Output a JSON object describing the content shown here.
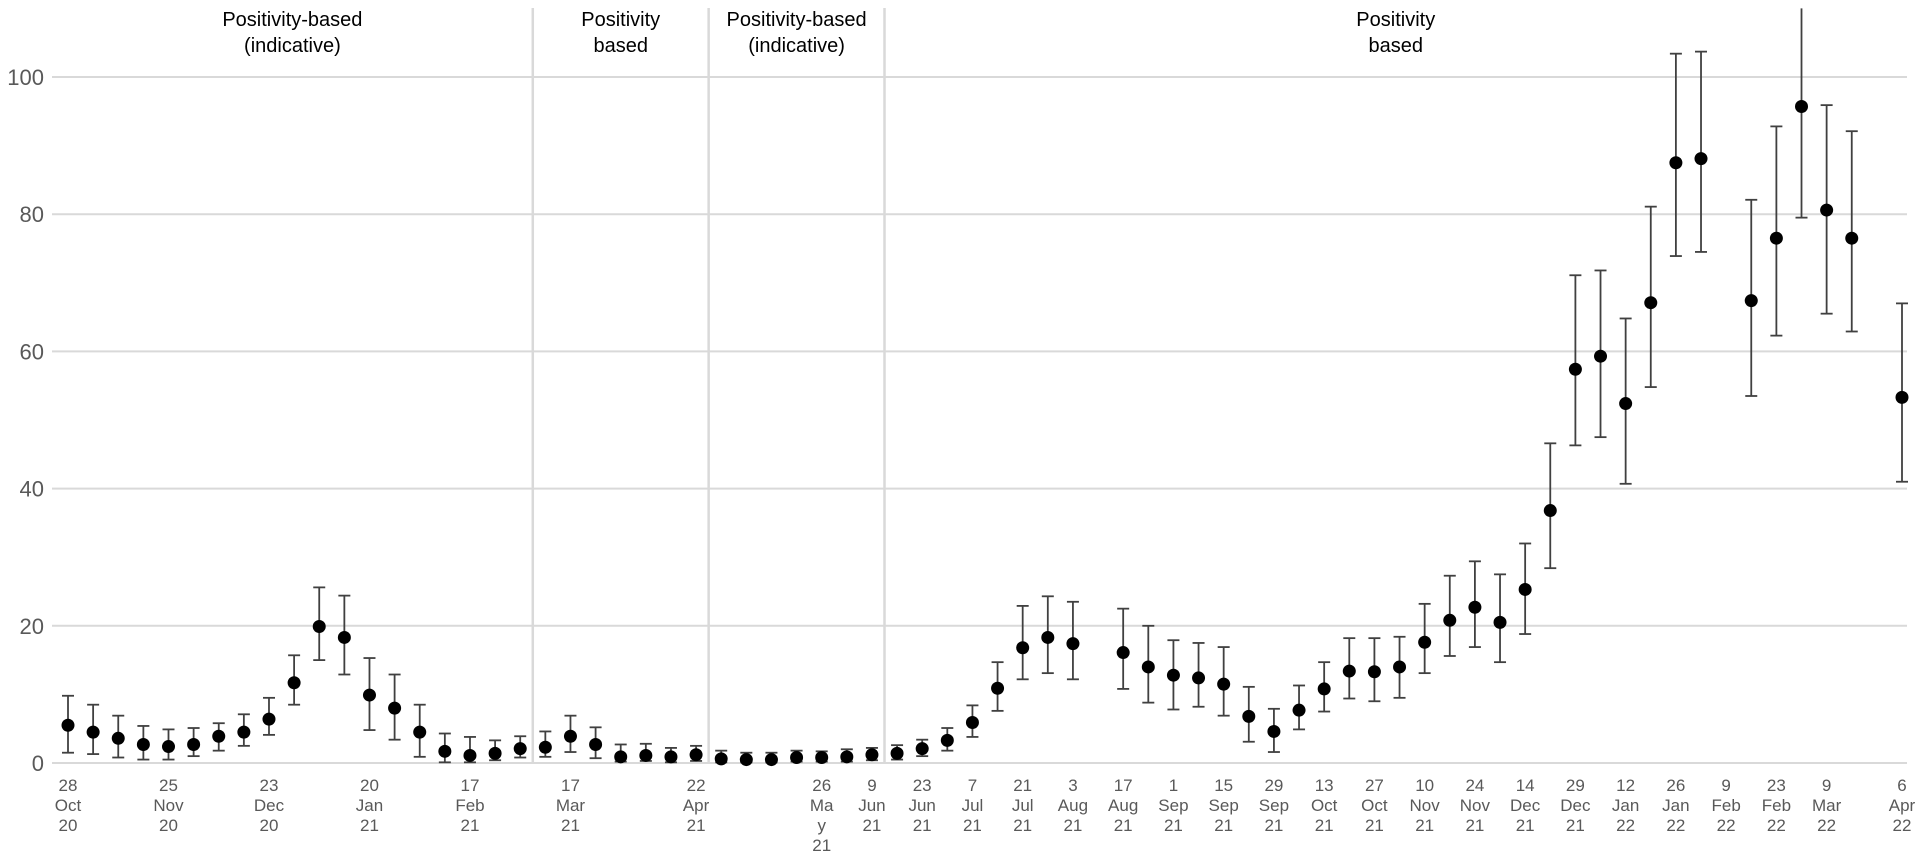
{
  "chart_data": {
    "type": "scatter",
    "title": "",
    "xlabel": "",
    "ylabel": "",
    "ylim": [
      0,
      105
    ],
    "yticks": [
      0,
      20,
      40,
      60,
      80,
      100
    ],
    "grid": true,
    "colors": {
      "point": "#000000",
      "errorbar": "#404040",
      "gridline": "#d9d9d9",
      "divider": "#d9d9d9",
      "tick_text": "#595959",
      "period_text": "#000000"
    },
    "periods": [
      {
        "label_line1": "Positivity-based",
        "label_line2": "(indicative)",
        "from_index": 0,
        "to_index": 19
      },
      {
        "label_line1": "Positivity",
        "label_line2": "based",
        "from_index": 19,
        "to_index": 26
      },
      {
        "label_line1": "Positivity-based",
        "label_line2": "(indicative)",
        "from_index": 26,
        "to_index": 33
      },
      {
        "label_line1": "Positivity",
        "label_line2": "based",
        "from_index": 33,
        "to_index": 74
      }
    ],
    "x_tick_labels": [
      {
        "index": 0,
        "lines": [
          "28",
          "Oct",
          "20"
        ]
      },
      {
        "index": 4,
        "lines": [
          "25",
          "Nov",
          "20"
        ]
      },
      {
        "index": 8,
        "lines": [
          "23",
          "Dec",
          "20"
        ]
      },
      {
        "index": 12,
        "lines": [
          "20",
          "Jan",
          "21"
        ]
      },
      {
        "index": 16,
        "lines": [
          "17",
          "Feb",
          "21"
        ]
      },
      {
        "index": 20,
        "lines": [
          "17",
          "Mar",
          "21"
        ]
      },
      {
        "index": 25,
        "lines": [
          "22",
          "Apr",
          "21"
        ]
      },
      {
        "index": 30,
        "lines": [
          "26",
          "Ma",
          "y",
          "21"
        ]
      },
      {
        "index": 32,
        "lines": [
          "9",
          "Jun",
          "21"
        ]
      },
      {
        "index": 34,
        "lines": [
          "23",
          "Jun",
          "21"
        ]
      },
      {
        "index": 36,
        "lines": [
          "7",
          "Jul",
          "21"
        ]
      },
      {
        "index": 38,
        "lines": [
          "21",
          "Jul",
          "21"
        ]
      },
      {
        "index": 40,
        "lines": [
          "3",
          "Aug",
          "21"
        ]
      },
      {
        "index": 42,
        "lines": [
          "17",
          "Aug",
          "21"
        ]
      },
      {
        "index": 44,
        "lines": [
          "1",
          "Sep",
          "21"
        ]
      },
      {
        "index": 46,
        "lines": [
          "15",
          "Sep",
          "21"
        ]
      },
      {
        "index": 48,
        "lines": [
          "29",
          "Sep",
          "21"
        ]
      },
      {
        "index": 50,
        "lines": [
          "13",
          "Oct",
          "21"
        ]
      },
      {
        "index": 52,
        "lines": [
          "27",
          "Oct",
          "21"
        ]
      },
      {
        "index": 54,
        "lines": [
          "10",
          "Nov",
          "21"
        ]
      },
      {
        "index": 56,
        "lines": [
          "24",
          "Nov",
          "21"
        ]
      },
      {
        "index": 58,
        "lines": [
          "14",
          "Dec",
          "21"
        ]
      },
      {
        "index": 60,
        "lines": [
          "29",
          "Dec",
          "21"
        ]
      },
      {
        "index": 62,
        "lines": [
          "12",
          "Jan",
          "22"
        ]
      },
      {
        "index": 64,
        "lines": [
          "26",
          "Jan",
          "22"
        ]
      },
      {
        "index": 66,
        "lines": [
          "9",
          "Feb",
          "22"
        ]
      },
      {
        "index": 68,
        "lines": [
          "23",
          "Feb",
          "22"
        ]
      },
      {
        "index": 70,
        "lines": [
          "9",
          "Mar",
          "22"
        ]
      },
      {
        "index": 73,
        "lines": [
          "6",
          "Apr",
          "22"
        ]
      }
    ],
    "points": [
      {
        "index": 0,
        "y": 5.5,
        "lo": 1.5,
        "hi": 9.8
      },
      {
        "index": 1,
        "y": 4.5,
        "lo": 1.3,
        "hi": 8.5
      },
      {
        "index": 2,
        "y": 3.6,
        "lo": 0.8,
        "hi": 6.9
      },
      {
        "index": 3,
        "y": 2.7,
        "lo": 0.5,
        "hi": 5.4
      },
      {
        "index": 4,
        "y": 2.4,
        "lo": 0.5,
        "hi": 4.9
      },
      {
        "index": 5,
        "y": 2.7,
        "lo": 1.0,
        "hi": 5.1
      },
      {
        "index": 6,
        "y": 3.9,
        "lo": 1.8,
        "hi": 5.8
      },
      {
        "index": 7,
        "y": 4.5,
        "lo": 2.5,
        "hi": 7.1
      },
      {
        "index": 8,
        "y": 6.4,
        "lo": 4.1,
        "hi": 9.5
      },
      {
        "index": 9,
        "y": 11.7,
        "lo": 8.5,
        "hi": 15.7
      },
      {
        "index": 10,
        "y": 19.9,
        "lo": 15.0,
        "hi": 25.6
      },
      {
        "index": 11,
        "y": 18.3,
        "lo": 12.9,
        "hi": 24.4
      },
      {
        "index": 12,
        "y": 9.9,
        "lo": 4.8,
        "hi": 15.3
      },
      {
        "index": 13,
        "y": 8.0,
        "lo": 3.4,
        "hi": 12.9
      },
      {
        "index": 14,
        "y": 4.5,
        "lo": 0.9,
        "hi": 8.5
      },
      {
        "index": 15,
        "y": 1.7,
        "lo": 0.1,
        "hi": 4.3
      },
      {
        "index": 16,
        "y": 1.1,
        "lo": 0.1,
        "hi": 3.8
      },
      {
        "index": 17,
        "y": 1.4,
        "lo": 0.4,
        "hi": 3.3
      },
      {
        "index": 18,
        "y": 2.1,
        "lo": 0.8,
        "hi": 3.9
      },
      {
        "index": 19,
        "y": 2.3,
        "lo": 0.9,
        "hi": 4.6
      },
      {
        "index": 20,
        "y": 3.9,
        "lo": 1.6,
        "hi": 6.9
      },
      {
        "index": 21,
        "y": 2.7,
        "lo": 0.7,
        "hi": 5.2
      },
      {
        "index": 22,
        "y": 0.9,
        "lo": 0.2,
        "hi": 2.7
      },
      {
        "index": 23,
        "y": 1.1,
        "lo": 0.3,
        "hi": 2.8
      },
      {
        "index": 24,
        "y": 0.9,
        "lo": 0.1,
        "hi": 2.2
      },
      {
        "index": 25,
        "y": 1.2,
        "lo": 0.3,
        "hi": 2.5
      },
      {
        "index": 26,
        "y": 0.6,
        "lo": 0.1,
        "hi": 1.8
      },
      {
        "index": 27,
        "y": 0.5,
        "lo": 0.1,
        "hi": 1.5
      },
      {
        "index": 28,
        "y": 0.5,
        "lo": 0.1,
        "hi": 1.5
      },
      {
        "index": 29,
        "y": 0.8,
        "lo": 0.2,
        "hi": 1.8
      },
      {
        "index": 30,
        "y": 0.8,
        "lo": 0.2,
        "hi": 1.7
      },
      {
        "index": 31,
        "y": 0.9,
        "lo": 0.2,
        "hi": 2.0
      },
      {
        "index": 32,
        "y": 1.2,
        "lo": 0.4,
        "hi": 2.2
      },
      {
        "index": 33,
        "y": 1.4,
        "lo": 0.5,
        "hi": 2.6
      },
      {
        "index": 34,
        "y": 2.1,
        "lo": 1.0,
        "hi": 3.4
      },
      {
        "index": 35,
        "y": 3.3,
        "lo": 1.8,
        "hi": 5.1
      },
      {
        "index": 36,
        "y": 5.9,
        "lo": 3.8,
        "hi": 8.4
      },
      {
        "index": 37,
        "y": 10.9,
        "lo": 7.6,
        "hi": 14.7
      },
      {
        "index": 38,
        "y": 16.8,
        "lo": 12.2,
        "hi": 22.9
      },
      {
        "index": 39,
        "y": 18.3,
        "lo": 13.1,
        "hi": 24.3
      },
      {
        "index": 40,
        "y": 17.4,
        "lo": 12.2,
        "hi": 23.5
      },
      {
        "index": 42,
        "y": 16.1,
        "lo": 10.8,
        "hi": 22.5
      },
      {
        "index": 43,
        "y": 14.0,
        "lo": 8.8,
        "hi": 20.0
      },
      {
        "index": 44,
        "y": 12.8,
        "lo": 7.8,
        "hi": 17.9
      },
      {
        "index": 45,
        "y": 12.4,
        "lo": 8.2,
        "hi": 17.5
      },
      {
        "index": 46,
        "y": 11.5,
        "lo": 6.9,
        "hi": 16.9
      },
      {
        "index": 47,
        "y": 6.8,
        "lo": 3.1,
        "hi": 11.1
      },
      {
        "index": 48,
        "y": 4.6,
        "lo": 1.6,
        "hi": 7.9
      },
      {
        "index": 49,
        "y": 7.7,
        "lo": 4.9,
        "hi": 11.3
      },
      {
        "index": 50,
        "y": 10.8,
        "lo": 7.5,
        "hi": 14.7
      },
      {
        "index": 51,
        "y": 13.4,
        "lo": 9.4,
        "hi": 18.2
      },
      {
        "index": 52,
        "y": 13.3,
        "lo": 9.0,
        "hi": 18.2
      },
      {
        "index": 53,
        "y": 14.0,
        "lo": 9.5,
        "hi": 18.4
      },
      {
        "index": 54,
        "y": 17.6,
        "lo": 13.1,
        "hi": 23.2
      },
      {
        "index": 55,
        "y": 20.8,
        "lo": 15.6,
        "hi": 27.3
      },
      {
        "index": 56,
        "y": 22.7,
        "lo": 16.9,
        "hi": 29.4
      },
      {
        "index": 57,
        "y": 20.5,
        "lo": 14.7,
        "hi": 27.5
      },
      {
        "index": 58,
        "y": 25.3,
        "lo": 18.8,
        "hi": 32.0
      },
      {
        "index": 59,
        "y": 36.8,
        "lo": 28.4,
        "hi": 46.6
      },
      {
        "index": 60,
        "y": 57.4,
        "lo": 46.3,
        "hi": 71.1
      },
      {
        "index": 61,
        "y": 59.3,
        "lo": 47.5,
        "hi": 71.8
      },
      {
        "index": 62,
        "y": 52.4,
        "lo": 40.7,
        "hi": 64.8
      },
      {
        "index": 63,
        "y": 67.1,
        "lo": 54.8,
        "hi": 81.1
      },
      {
        "index": 64,
        "y": 87.5,
        "lo": 73.9,
        "hi": 103.4
      },
      {
        "index": 65,
        "y": 88.1,
        "lo": 74.5,
        "hi": 103.7
      },
      {
        "index": 67,
        "y": 67.4,
        "lo": 53.5,
        "hi": 82.1
      },
      {
        "index": 68,
        "y": 76.5,
        "lo": 62.3,
        "hi": 92.8
      },
      {
        "index": 69,
        "y": 95.7,
        "lo": 79.5,
        "hi": 110.0
      },
      {
        "index": 70,
        "y": 80.6,
        "lo": 65.5,
        "hi": 95.9
      },
      {
        "index": 71,
        "y": 76.5,
        "lo": 62.9,
        "hi": 92.1
      },
      {
        "index": 73,
        "y": 53.3,
        "lo": 41.0,
        "hi": 67.0
      }
    ]
  }
}
